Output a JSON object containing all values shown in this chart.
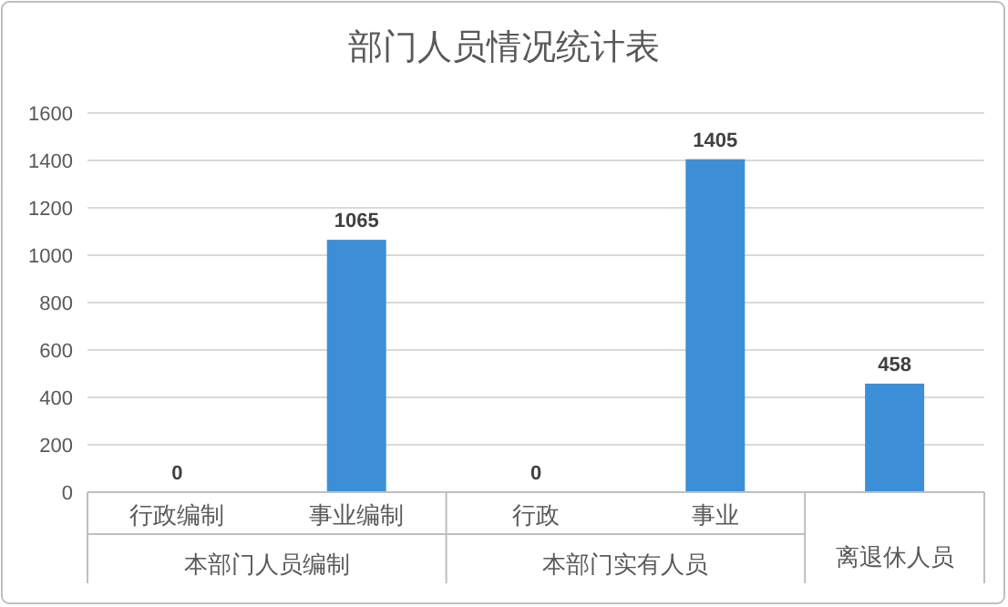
{
  "chart_data": {
    "type": "bar",
    "title": "部门人员情况统计表",
    "categories": [
      "行政编制",
      "事业编制",
      "行政",
      "事业",
      "离退休人员"
    ],
    "values": [
      0,
      1065,
      0,
      1405,
      458
    ],
    "color": "#3c8fd6",
    "ylim": [
      0,
      1600
    ],
    "yticks": [
      0,
      200,
      400,
      600,
      800,
      1000,
      1200,
      1400,
      1600
    ],
    "grid": "y",
    "data_labels": true,
    "annotations": [
      "本部门人员编制",
      "本部门实有人员"
    ]
  }
}
